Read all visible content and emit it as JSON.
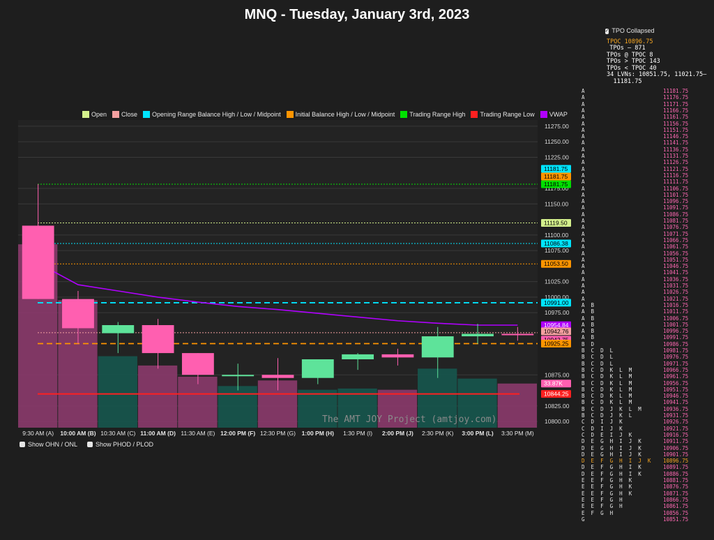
{
  "chart_data": {
    "type": "candlestick",
    "title": "MNQ - Tuesday, January 3rd, 2023",
    "y_range": [
      10790,
      11285
    ],
    "y_ticks": [
      "11275.00",
      "11250.00",
      "11225.00",
      "11175.00",
      "11150.00",
      "11100.00",
      "11075.00",
      "11025.00",
      "11000.00",
      "10975.00",
      "10875.00",
      "10825.00",
      "10800.00"
    ],
    "y_tick_values": [
      11275,
      11250,
      11225,
      11175,
      11150,
      11100,
      11075,
      11025,
      11000,
      10975,
      10875,
      10825,
      10800
    ],
    "x_labels": [
      {
        "text": "9:30 AM (A)",
        "bold": false
      },
      {
        "text": "10:00 AM (B)",
        "bold": true
      },
      {
        "text": "10:30 AM (C)",
        "bold": false
      },
      {
        "text": "11:00 AM (D)",
        "bold": true
      },
      {
        "text": "11:30 AM (E)",
        "bold": false
      },
      {
        "text": "12:00 PM (F)",
        "bold": true
      },
      {
        "text": "12:30 PM (G)",
        "bold": false
      },
      {
        "text": "1:00 PM (H)",
        "bold": true
      },
      {
        "text": "1:30 PM (I)",
        "bold": false
      },
      {
        "text": "2:00 PM (J)",
        "bold": true
      },
      {
        "text": "2:30 PM (K)",
        "bold": false
      },
      {
        "text": "3:00 PM (L)",
        "bold": true
      },
      {
        "text": "3:30 PM (M)",
        "bold": false
      }
    ],
    "candles": [
      {
        "o": 11115,
        "h": 11182,
        "l": 10997,
        "c": 10997
      },
      {
        "o": 10997,
        "h": 11010,
        "l": 10925,
        "c": 10950
      },
      {
        "o": 10942,
        "h": 10960,
        "l": 10910,
        "c": 10955
      },
      {
        "o": 10955,
        "h": 10965,
        "l": 10885,
        "c": 10910
      },
      {
        "o": 10910,
        "h": 10910,
        "l": 10860,
        "c": 10875
      },
      {
        "o": 10874,
        "h": 10893,
        "l": 10850,
        "c": 10875
      },
      {
        "o": 10875,
        "h": 10902,
        "l": 10850,
        "c": 10870
      },
      {
        "o": 10870,
        "h": 10900,
        "l": 10860,
        "c": 10900
      },
      {
        "o": 10900,
        "h": 10910,
        "l": 10883,
        "c": 10908
      },
      {
        "o": 10908,
        "h": 10917,
        "l": 10890,
        "c": 10903
      },
      {
        "o": 10903,
        "h": 10952,
        "l": 10870,
        "c": 10937
      },
      {
        "o": 10937,
        "h": 10957,
        "l": 10925,
        "c": 10941
      },
      {
        "o": 10941,
        "h": 10952,
        "l": 10930,
        "c": 10940
      }
    ],
    "volume_bars": [
      {
        "color": "#8b3a6b",
        "top": 11085
      },
      {
        "color": "#8b3a6b",
        "top": 10995
      },
      {
        "color": "#16574e",
        "top": 10905
      },
      {
        "color": "#8b3a6b",
        "top": 10890
      },
      {
        "color": "#8b3a6b",
        "top": 10872
      },
      {
        "color": "#16574e",
        "top": 10857
      },
      {
        "color": "#8b3a6b",
        "top": 10866
      },
      {
        "color": "#16574e",
        "top": 10851
      },
      {
        "color": "#16574e",
        "top": 10853
      },
      {
        "color": "#8b3a6b",
        "top": 10851
      },
      {
        "color": "#16574e",
        "top": 10885
      },
      {
        "color": "#16574e",
        "top": 10869
      },
      {
        "color": "#8b3a6b",
        "top": 10861
      }
    ],
    "vwap": [
      11055,
      11020,
      11010,
      11000,
      10992,
      10985,
      10980,
      10974,
      10968,
      10962,
      10958,
      10955,
      10955
    ],
    "levels": [
      {
        "label": "11181.75",
        "value": 11181.75,
        "color": "#00e5ff",
        "style": "dotted",
        "text_color": "#000000"
      },
      {
        "label": "11181.75",
        "value": 11181.75,
        "color": "#ff9500",
        "style": "dotted",
        "text_color": "#000000"
      },
      {
        "label": "11181.75",
        "value": 11181.75,
        "color": "#00e000",
        "style": "dotted",
        "text_color": "#000000"
      },
      {
        "label": "11119.50",
        "value": 11119.5,
        "color": "#d4f08c",
        "style": "dotted",
        "text_color": "#000000"
      },
      {
        "label": "11086.38",
        "value": 11086.38,
        "color": "#00e5ff",
        "style": "dotted",
        "text_color": "#000000"
      },
      {
        "label": "11053.50",
        "value": 11053.5,
        "color": "#ff9500",
        "style": "dotted",
        "text_color": "#000000"
      },
      {
        "label": "10991.00",
        "value": 10991.0,
        "color": "#00e5ff",
        "style": "dashed",
        "text_color": "#000000"
      },
      {
        "label": "10954.84",
        "value": 10954.84,
        "color": "#b000ff",
        "style": "none",
        "text_color": "#ffffff"
      },
      {
        "label": "10942.76",
        "value": 10942.76,
        "color": "#f4a0a0",
        "style": "dotted",
        "text_color": "#000000"
      },
      {
        "label": "10942.75",
        "value": 10942.75,
        "color": "#ff5fb0",
        "style": "none",
        "text_color": "#000000"
      },
      {
        "label": "10925.25",
        "value": 10925.25,
        "color": "#ff9500",
        "style": "dashed",
        "text_color": "#000000"
      },
      {
        "label": "33.87K",
        "value": 10861,
        "color": "#ff5fb0",
        "style": "none",
        "text_color": "#ffffff"
      },
      {
        "label": "10844.25",
        "value": 10844.25,
        "color": "#ff2020",
        "style": "solid",
        "text_color": "#ffffff"
      }
    ],
    "legend": [
      {
        "label": "Open",
        "color": "#d4f08c"
      },
      {
        "label": "Close",
        "color": "#f4a0a0"
      },
      {
        "label": "Opening Range Balance High / Low / Midpoint",
        "color": "#00e5ff"
      },
      {
        "label": "Initial Balance High / Low / Midpoint",
        "color": "#ff9500"
      },
      {
        "label": "Trading Range High",
        "color": "#00e000"
      },
      {
        "label": "Trading Range Low",
        "color": "#ff2020"
      },
      {
        "label": "VWAP",
        "color": "#b000ff"
      }
    ],
    "watermark": "The AMT JOY Project (amtjoy.com)",
    "grid": true
  },
  "toggles": {
    "ohn": "Show OHN / ONL",
    "phod": "Show PHOD / PLOD"
  },
  "tpo": {
    "collapsed_label": "TPO Collapsed",
    "stats": {
      "tpoc": "TPOC 10896.75",
      "tpos": "TPOs – 871",
      "at_tpoc": "TPOs @ TPOC 8",
      "above": "TPOs > TPOC 143",
      "below": "TPOs < TPOC 40",
      "lvns1": "34 LVNs: 10851.75, 11021.75–",
      "lvns2": "11181.75"
    },
    "tpoc_price": "10896.75",
    "rows": [
      [
        "A",
        "11181.75"
      ],
      [
        "A",
        "11176.75"
      ],
      [
        "A",
        "11171.75"
      ],
      [
        "A",
        "11166.75"
      ],
      [
        "A",
        "11161.75"
      ],
      [
        "A",
        "11156.75"
      ],
      [
        "A",
        "11151.75"
      ],
      [
        "A",
        "11146.75"
      ],
      [
        "A",
        "11141.75"
      ],
      [
        "A",
        "11136.75"
      ],
      [
        "A",
        "11131.75"
      ],
      [
        "A",
        "11126.75"
      ],
      [
        "A",
        "11121.75"
      ],
      [
        "A",
        "11116.75"
      ],
      [
        "A",
        "11111.75"
      ],
      [
        "A",
        "11106.75"
      ],
      [
        "A",
        "11101.75"
      ],
      [
        "A",
        "11096.75"
      ],
      [
        "A",
        "11091.75"
      ],
      [
        "A",
        "11086.75"
      ],
      [
        "A",
        "11081.75"
      ],
      [
        "A",
        "11076.75"
      ],
      [
        "A",
        "11071.75"
      ],
      [
        "A",
        "11066.75"
      ],
      [
        "A",
        "11061.75"
      ],
      [
        "A",
        "11056.75"
      ],
      [
        "A",
        "11051.75"
      ],
      [
        "A",
        "11046.75"
      ],
      [
        "A",
        "11041.75"
      ],
      [
        "A",
        "11036.75"
      ],
      [
        "A",
        "11031.75"
      ],
      [
        "A",
        "11026.75"
      ],
      [
        "A",
        "11021.75"
      ],
      [
        "A  B",
        "11016.75"
      ],
      [
        "A  B",
        "11011.75"
      ],
      [
        "A  B",
        "11006.75"
      ],
      [
        "A  B",
        "11001.75"
      ],
      [
        "A  B",
        "10996.75"
      ],
      [
        "A  B",
        "10991.75"
      ],
      [
        "B  D",
        "10986.75"
      ],
      [
        "B  C  D  L",
        "10981.75"
      ],
      [
        "B  C  D  L",
        "10976.75"
      ],
      [
        "B  C  D  L",
        "10971.75"
      ],
      [
        "B  C  D  K  L  M",
        "10966.75"
      ],
      [
        "B  C  D  K  L  M",
        "10961.75"
      ],
      [
        "B  C  D  K  L  M",
        "10956.75"
      ],
      [
        "B  C  D  K  L  M",
        "10951.75"
      ],
      [
        "B  C  D  K  L  M",
        "10946.75"
      ],
      [
        "B  C  D  K  L  M",
        "10941.75"
      ],
      [
        "B  C  D  J  K  L  M",
        "10936.75"
      ],
      [
        "B  C  D  J  K  L",
        "10931.75"
      ],
      [
        "C  D  I  J  K",
        "10926.75"
      ],
      [
        "C  D  I  J  K",
        "10921.75"
      ],
      [
        "C  D  E  I  J  K",
        "10916.75"
      ],
      [
        "D  E  G  H  I  J  K",
        "10911.75"
      ],
      [
        "D  E  G  H  I  J  K",
        "10906.75"
      ],
      [
        "D  E  G  H  I  J  K",
        "10901.75"
      ],
      [
        "D  E  F  G  H  I  J  K",
        "10896.75"
      ],
      [
        "D  E  F  G  H  I  K",
        "10891.75"
      ],
      [
        "D  E  F  G  H  I  K",
        "10886.75"
      ],
      [
        "E  E  F  G  H  K",
        "10881.75"
      ],
      [
        "E  E  F  G  H  K",
        "10876.75"
      ],
      [
        "E  E  F  G  H  K",
        "10871.75"
      ],
      [
        "E  E  F  G  H",
        "10866.75"
      ],
      [
        "E  E  F  G  H",
        "10861.75"
      ],
      [
        "E  F  G  H",
        "10856.75"
      ],
      [
        "G",
        "10851.75"
      ]
    ]
  }
}
